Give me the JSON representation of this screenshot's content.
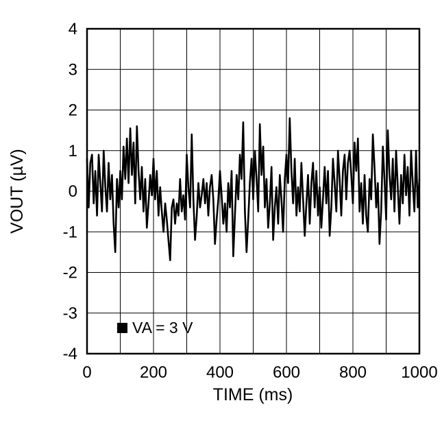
{
  "chart_data": {
    "type": "line",
    "title": "",
    "xlabel": "TIME (ms)",
    "ylabel": "VOUT (µV)",
    "xlim": [
      0,
      1000
    ],
    "ylim": [
      -4,
      4
    ],
    "xticks": [
      0,
      200,
      400,
      600,
      800,
      1000
    ],
    "yticks": [
      4,
      3,
      2,
      1,
      0,
      -1,
      -2,
      -3,
      -4
    ],
    "x_grid_step": 100,
    "y_grid_step": 1,
    "grid": true,
    "legend": "VA = 3 V",
    "legend_position": "bottom-left-inside",
    "line_color": "#000000",
    "grid_color": "#000000",
    "series": [
      {
        "name": "VA = 3 V",
        "x_start": 0,
        "x_step": 5,
        "values": [
          0.8,
          -0.4,
          0.7,
          0.9,
          -0.3,
          0.5,
          -0.6,
          0.9,
          0.2,
          -0.5,
          1.0,
          0.1,
          -0.5,
          0.7,
          -0.2,
          0.4,
          -0.8,
          -1.5,
          0.3,
          -0.4,
          0.5,
          -0.2,
          1.1,
          0.3,
          1.3,
          0.2,
          1.55,
          0.4,
          1.2,
          -0.3,
          1.6,
          0.5,
          -0.2,
          0.6,
          -0.5,
          0.3,
          -0.9,
          -0.3,
          0.4,
          -0.1,
          0.8,
          -0.2,
          0.5,
          -0.6,
          0.1,
          -0.5,
          -1.0,
          -0.3,
          -0.7,
          -1.2,
          -1.7,
          -0.4,
          -0.2,
          -0.8,
          -0.3,
          -0.6,
          0.3,
          -0.5,
          -0.1,
          -0.7,
          0.9,
          0.1,
          -0.4,
          1.4,
          -0.2,
          -1.2,
          -0.6,
          0.2,
          -0.4,
          -0.1,
          0.3,
          -0.3,
          0.2,
          -0.6,
          0.1,
          0.4,
          -0.2,
          -1.3,
          -0.7,
          -0.2,
          0.5,
          -0.1,
          -0.8,
          -0.3,
          -1.0,
          0.2,
          -0.4,
          0.5,
          -1.6,
          -0.6,
          0.4,
          -0.2,
          0.9,
          0.3,
          1.7,
          -0.5,
          -1.5,
          -0.7,
          0.2,
          0.8,
          -0.2,
          1.0,
          0.3,
          -0.5,
          1.65,
          0.4,
          1.1,
          -0.4,
          0.3,
          -0.9,
          -0.3,
          0.6,
          -1.2,
          -0.4,
          0.1,
          -0.8,
          0.4,
          -0.2,
          -1.0,
          0.3,
          0.9,
          0.2,
          1.8,
          0.5,
          -0.3,
          0.8,
          -0.6,
          0.1,
          -0.5,
          0.7,
          -0.2,
          -1.1,
          -0.3,
          0.4,
          -0.8,
          0.2,
          0.7,
          -0.4,
          0.5,
          -0.6,
          0.1,
          -0.9,
          -0.2,
          0.6,
          -0.3,
          0.5,
          -1.1,
          -0.4,
          0.8,
          0.2,
          -0.5,
          1.0,
          0.3,
          -0.6,
          0.5,
          0.9,
          -0.2,
          0.7,
          1.0,
          0.4,
          -0.3,
          1.2,
          0.5,
          1.3,
          -0.5,
          0.2,
          -0.8,
          0.4,
          -0.6,
          -1.0,
          0.3,
          -0.2,
          1.4,
          0.6,
          -0.4,
          0.2,
          -1.3,
          -0.5,
          1.1,
          0.3,
          -0.7,
          1.5,
          0.4,
          -0.2,
          0.8,
          -0.5,
          1.0,
          0.1,
          -0.8,
          0.4,
          -0.3,
          0.9,
          -0.1,
          0.6,
          -0.6,
          1.0,
          0.2,
          -0.5,
          1.0,
          -0.4,
          0.3
        ]
      }
    ]
  }
}
